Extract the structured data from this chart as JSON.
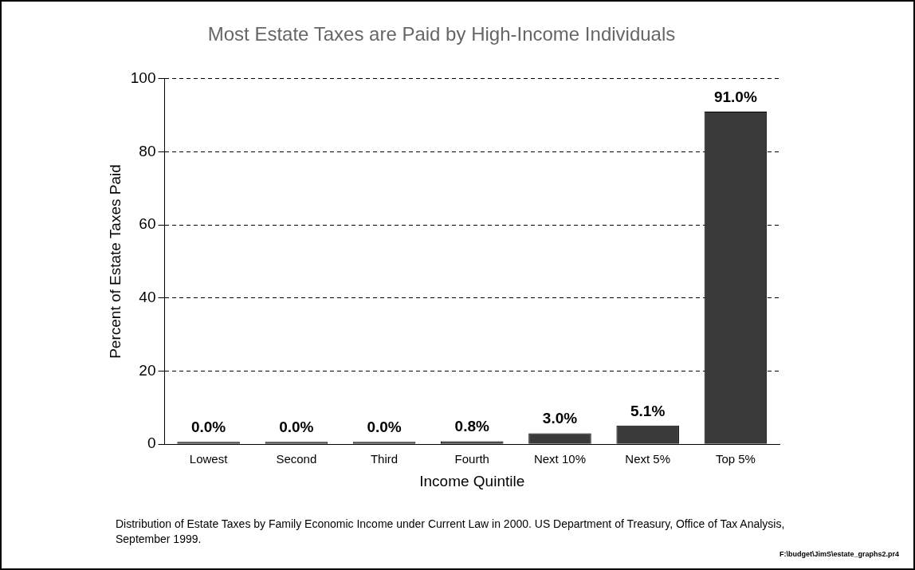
{
  "chart_data": {
    "type": "bar",
    "title": "Most Estate Taxes are Paid by High-Income Individuals",
    "xlabel": "Income Quintile",
    "ylabel": "Percent of Estate Taxes Paid",
    "categories": [
      "Lowest",
      "Second",
      "Third",
      "Fourth",
      "Next 10%",
      "Next 5%",
      "Top 5%"
    ],
    "values": [
      0.0,
      0.0,
      0.0,
      0.8,
      3.0,
      5.1,
      91.0
    ],
    "value_labels": [
      "0.0%",
      "0.0%",
      "0.0%",
      "0.8%",
      "3.0%",
      "5.1%",
      "91.0%"
    ],
    "color": "#3a3a3a",
    "ylim": [
      0,
      100
    ],
    "yticks": [
      0,
      20,
      40,
      60,
      80,
      100
    ],
    "grid": "y",
    "annotations": [
      "Distribution of Estate Taxes by Family Economic Income under Current Law in 2000.  US Department of Treasury, Office of Tax Analysis, September 1999.",
      "F:\\budget\\JimS\\estate_graphs2.pr4"
    ]
  }
}
